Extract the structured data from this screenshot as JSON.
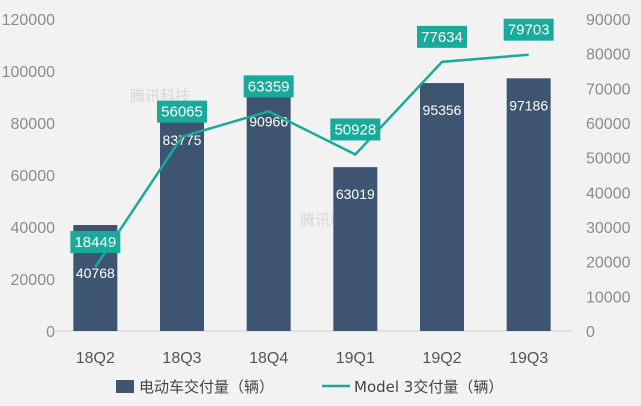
{
  "chart_data": {
    "type": "bar+line",
    "categories": [
      "18Q2",
      "18Q3",
      "18Q4",
      "19Q1",
      "19Q2",
      "19Q3"
    ],
    "series": [
      {
        "name": "电动车交付量（辆）",
        "type": "bar",
        "axis": "left",
        "values": [
          40768,
          83775,
          90966,
          63019,
          95356,
          97186
        ],
        "color": "#3d5570"
      },
      {
        "name": "Model 3交付量（辆）",
        "type": "line",
        "axis": "right",
        "values": [
          18449,
          56065,
          63359,
          50928,
          77634,
          79703
        ],
        "color": "#1aaa9c"
      }
    ],
    "y_left": {
      "min": 0,
      "max": 120000,
      "ticks": [
        "0",
        "20000",
        "40000",
        "60000",
        "80000",
        "100000",
        "120000"
      ]
    },
    "y_right": {
      "min": 0,
      "max": 90000,
      "ticks": [
        "0",
        "10000",
        "20000",
        "30000",
        "40000",
        "50000",
        "60000",
        "70000",
        "80000",
        "90000"
      ]
    },
    "legend_position": "bottom",
    "grid": false,
    "watermark": "腾讯科技"
  }
}
